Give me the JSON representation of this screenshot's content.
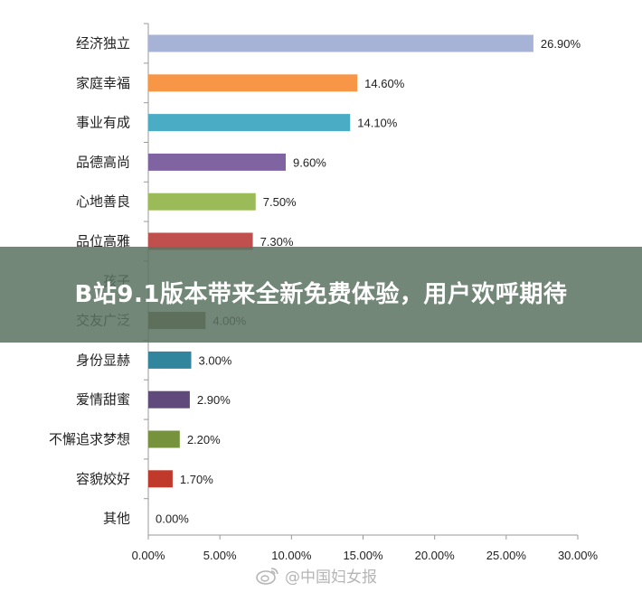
{
  "chart_data": {
    "type": "bar",
    "orientation": "horizontal",
    "categories": [
      "经济独立",
      "家庭幸福",
      "事业有成",
      "品德高尚",
      "心地善良",
      "品位高雅",
      "孩子",
      "交友广泛",
      "身份显赫",
      "爱情甜蜜",
      "不懈追求梦想",
      "容貌姣好",
      "其他"
    ],
    "values": [
      26.9,
      14.6,
      14.1,
      9.6,
      7.5,
      7.3,
      null,
      4.0,
      3.0,
      2.9,
      2.2,
      1.7,
      0.0
    ],
    "value_labels": [
      "26.90%",
      "14.60%",
      "14.10%",
      "9.60%",
      "7.50%",
      "7.30%",
      "",
      "4.00%",
      "3.00%",
      "2.90%",
      "2.20%",
      "1.70%",
      "0.00%"
    ],
    "colors": [
      "#a6b3d7",
      "#f79646",
      "#4bacc6",
      "#8064a2",
      "#9bbb59",
      "#c0504d",
      "#4f81bd",
      "#6b5a3a",
      "#31859c",
      "#604a7b",
      "#76923c",
      "#c0392b",
      "#888888"
    ],
    "xlim": [
      0,
      30
    ],
    "xticks": [
      "0.00%",
      "5.00%",
      "10.00%",
      "15.00%",
      "20.00%",
      "25.00%",
      "30.00%"
    ],
    "grid": false
  },
  "banner": {
    "title": "B站9.1版本带来全新免费体验，用户欢呼期待"
  },
  "watermark": {
    "text": "@中国妇女报",
    "icon": "weibo-icon"
  }
}
